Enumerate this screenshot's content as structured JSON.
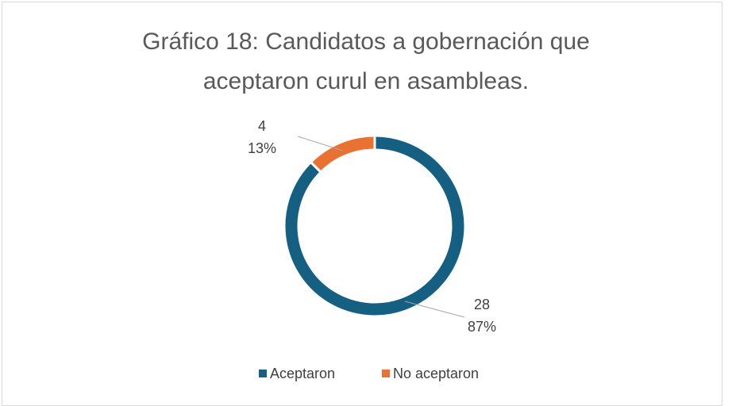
{
  "chart_data": {
    "type": "donut",
    "title": "Gráfico 18: Candidatos a gobernación que aceptaron curul en asambleas.",
    "categories": [
      "Aceptaron",
      "No aceptaron"
    ],
    "values": [
      28,
      4
    ],
    "percent_labels": [
      "87%",
      "13%"
    ],
    "colors": [
      "#156082",
      "#e97132"
    ],
    "legend": "bottom"
  }
}
